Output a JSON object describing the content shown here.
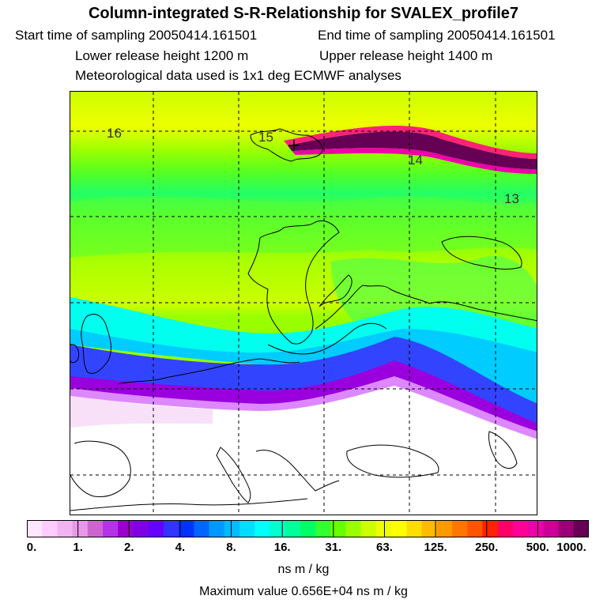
{
  "title": "Column-integrated S-R-Relationship for SVALEX_profile7",
  "start_time": "Start time of sampling 20050414.161501",
  "end_time": "End time of sampling 20050414.161501",
  "lower_release": "Lower release height 1200 m",
  "upper_release": "Upper release height 1400 m",
  "met_data": "Meteorological data used is 1x1 deg ECMWF analyses",
  "map": {
    "contour_labels": [
      "16",
      "15",
      "14",
      "13"
    ]
  },
  "colorbar": {
    "colors": [
      "#ffe6ff",
      "#ffccff",
      "#f2b3f2",
      "#e699e6",
      "#cc66cc",
      "#b333e6",
      "#9900cc",
      "#8000e6",
      "#6600ff",
      "#3333ff",
      "#0033ff",
      "#0066ff",
      "#0099ff",
      "#00bbff",
      "#00ddff",
      "#00ffff",
      "#00ffcc",
      "#00ff99",
      "#00ff66",
      "#33ff33",
      "#66ff00",
      "#99ff00",
      "#ccff00",
      "#eeff00",
      "#ffff00",
      "#ffdd00",
      "#ffbb00",
      "#ff9900",
      "#ff7700",
      "#ff5500",
      "#ff2200",
      "#ff0066",
      "#ff0099",
      "#ee00aa",
      "#cc0099",
      "#990077",
      "#660055"
    ],
    "tick_labels": [
      "0.",
      "1.",
      "2.",
      "4.",
      "8.",
      "16.",
      "31.",
      "63.",
      "125.",
      "250.",
      "500.",
      "1000."
    ]
  },
  "units": "ns m / kg",
  "max_value": "Maximum value  0.656E+04 ns m / kg"
}
